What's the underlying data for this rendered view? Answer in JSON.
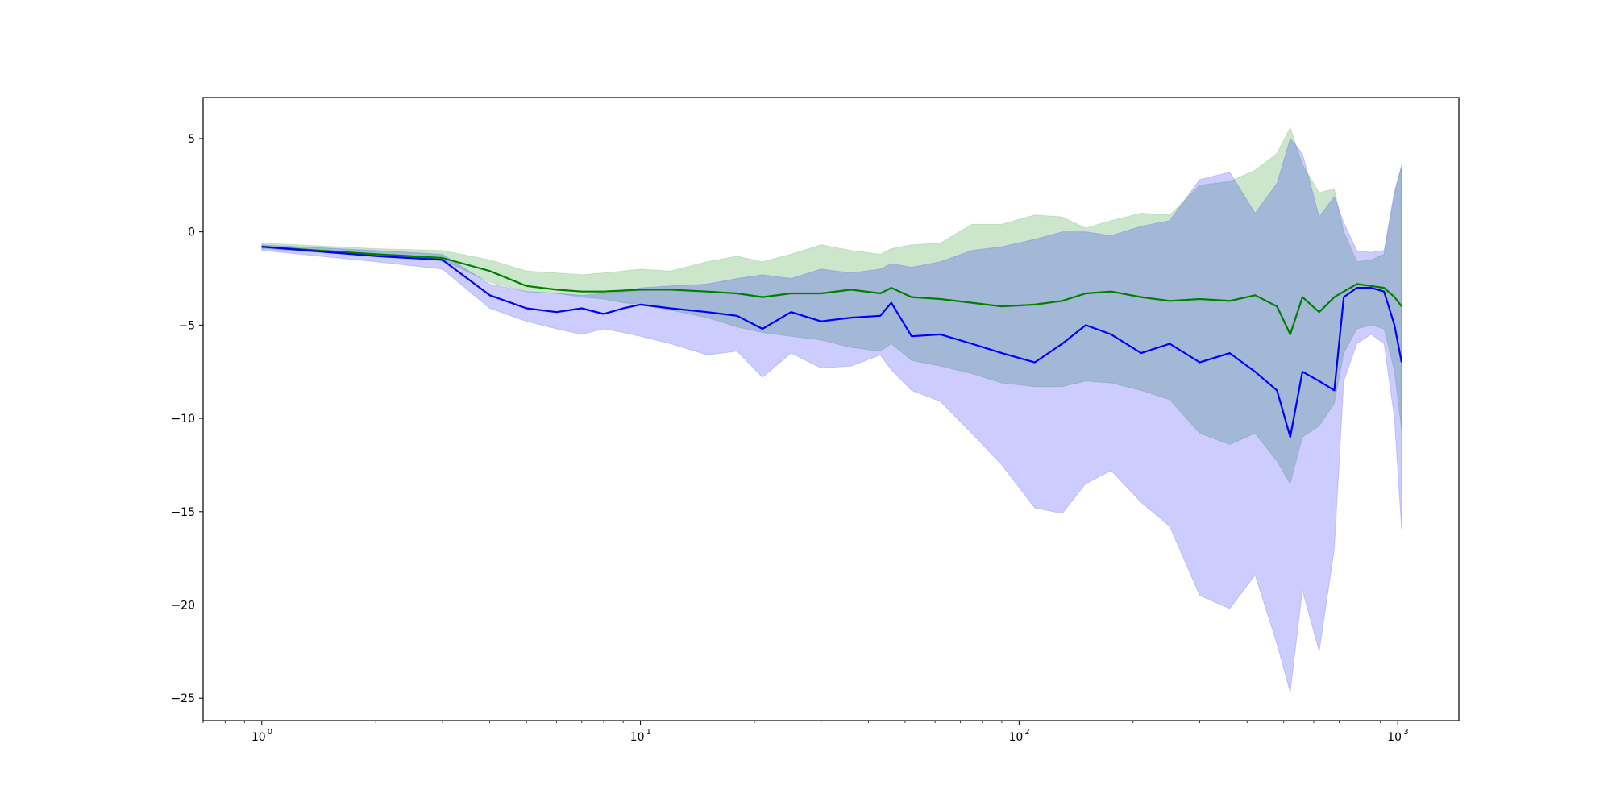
{
  "chart_data": {
    "type": "line",
    "title": "",
    "xlabel": "",
    "ylabel": "",
    "x_scale": "log",
    "xlim": [
      0.7,
      1450
    ],
    "ylim": [
      -26.2,
      7.2
    ],
    "grid": false,
    "legend": "none",
    "x_ticks": [
      {
        "value": 1,
        "base": "10",
        "exp": "0"
      },
      {
        "value": 10,
        "base": "10",
        "exp": "1"
      },
      {
        "value": 100,
        "base": "10",
        "exp": "2"
      },
      {
        "value": 1000,
        "base": "10",
        "exp": "3"
      }
    ],
    "y_ticks": [
      {
        "value": 5,
        "label": "5"
      },
      {
        "value": 0,
        "label": "0"
      },
      {
        "value": -5,
        "label": "−5"
      },
      {
        "value": -10,
        "label": "−10"
      },
      {
        "value": -15,
        "label": "−15"
      },
      {
        "value": -20,
        "label": "−20"
      },
      {
        "value": -25,
        "label": "−25"
      }
    ],
    "x": [
      1,
      2,
      3,
      4,
      5,
      6,
      7,
      8,
      9,
      10,
      12,
      15,
      18,
      21,
      25,
      30,
      36,
      43,
      46,
      52,
      62,
      75,
      90,
      110,
      130,
      150,
      175,
      210,
      250,
      300,
      360,
      420,
      480,
      520,
      560,
      620,
      680,
      720,
      780,
      850,
      920,
      980,
      1024
    ],
    "series": [
      {
        "color": "#008000",
        "band_color": "#008000",
        "values": [
          -0.8,
          -1.2,
          -1.4,
          -2.1,
          -2.9,
          -3.1,
          -3.2,
          -3.2,
          -3.15,
          -3.1,
          -3.1,
          -3.2,
          -3.3,
          -3.5,
          -3.3,
          -3.3,
          -3.1,
          -3.3,
          -3.0,
          -3.5,
          -3.6,
          -3.8,
          -4.0,
          -3.9,
          -3.7,
          -3.3,
          -3.2,
          -3.5,
          -3.7,
          -3.6,
          -3.7,
          -3.4,
          -4.0,
          -5.5,
          -3.5,
          -4.3,
          -3.5,
          -3.2,
          -2.8,
          -2.9,
          -3.0,
          -3.5,
          -4.0
        ],
        "upper": [
          -0.6,
          -0.9,
          -1.0,
          -1.5,
          -2.1,
          -2.2,
          -2.3,
          -2.2,
          -2.1,
          -2.0,
          -2.1,
          -1.6,
          -1.3,
          -1.6,
          -1.2,
          -0.7,
          -1.0,
          -1.2,
          -0.9,
          -0.7,
          -0.6,
          0.4,
          0.4,
          0.9,
          0.8,
          0.2,
          0.6,
          1.0,
          0.9,
          2.5,
          2.7,
          3.3,
          4.2,
          5.6,
          3.6,
          2.1,
          2.3,
          0.0,
          -1.6,
          -1.5,
          -1.2,
          2.0,
          3.6
        ],
        "lower": [
          -0.9,
          -1.3,
          -1.5,
          -2.7,
          -3.2,
          -3.3,
          -3.5,
          -3.6,
          -3.8,
          -3.9,
          -4.2,
          -4.6,
          -5.1,
          -5.4,
          -5.6,
          -5.8,
          -6.2,
          -6.4,
          -6.0,
          -6.9,
          -7.2,
          -7.6,
          -8.1,
          -8.3,
          -8.3,
          -8.0,
          -8.1,
          -8.5,
          -9.0,
          -10.8,
          -11.4,
          -10.8,
          -12.3,
          -13.5,
          -11.0,
          -10.4,
          -9.2,
          -6.5,
          -5.2,
          -5.0,
          -5.2,
          -7.5,
          -10.6
        ]
      },
      {
        "color": "#0000ff",
        "band_color": "#0000ff",
        "values": [
          -0.8,
          -1.3,
          -1.5,
          -3.4,
          -4.1,
          -4.3,
          -4.1,
          -4.4,
          -4.1,
          -3.9,
          -4.1,
          -4.3,
          -4.5,
          -5.2,
          -4.3,
          -4.8,
          -4.6,
          -4.5,
          -3.8,
          -5.6,
          -5.5,
          -6.0,
          -6.5,
          -7.0,
          -6.0,
          -5.0,
          -5.5,
          -6.5,
          -6.0,
          -7.0,
          -6.5,
          -7.5,
          -8.5,
          -11.0,
          -7.5,
          -8.0,
          -8.5,
          -3.5,
          -3.0,
          -3.0,
          -3.2,
          -5.0,
          -7.0
        ],
        "upper": [
          -0.7,
          -1.0,
          -1.2,
          -2.8,
          -3.2,
          -3.3,
          -3.4,
          -3.3,
          -3.2,
          -3.0,
          -2.9,
          -2.8,
          -2.5,
          -2.3,
          -2.5,
          -2.0,
          -2.2,
          -2.0,
          -1.7,
          -1.9,
          -1.6,
          -1.0,
          -0.8,
          -0.4,
          0.0,
          0.0,
          -0.2,
          0.3,
          0.6,
          2.8,
          3.2,
          1.0,
          2.6,
          5.0,
          4.2,
          0.8,
          1.9,
          0.5,
          -1.0,
          -1.1,
          -1.0,
          2.2,
          3.5
        ],
        "lower": [
          -1.0,
          -1.6,
          -2.0,
          -4.1,
          -4.8,
          -5.2,
          -5.5,
          -5.2,
          -5.4,
          -5.6,
          -6.0,
          -6.6,
          -6.4,
          -7.8,
          -6.5,
          -7.3,
          -7.2,
          -6.6,
          -7.4,
          -8.5,
          -9.1,
          -10.8,
          -12.5,
          -14.8,
          -15.1,
          -13.5,
          -12.8,
          -14.5,
          -15.8,
          -19.5,
          -20.2,
          -18.4,
          -22.1,
          -24.7,
          -19.2,
          -22.5,
          -17.0,
          -8.0,
          -6.0,
          -5.5,
          -6.0,
          -10.0,
          -16.0
        ]
      }
    ]
  }
}
